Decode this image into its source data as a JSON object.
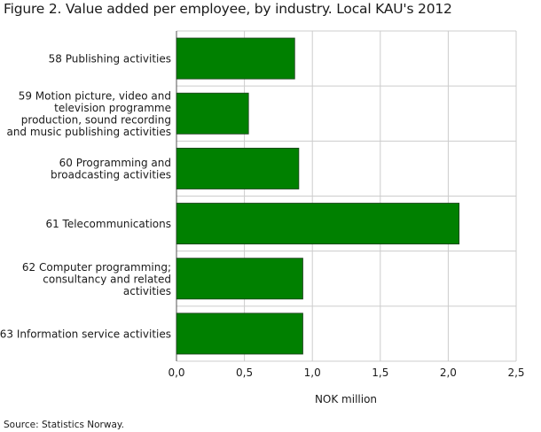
{
  "title": "Figure 2. Value added per employee, by industry. Local KAU's 2012",
  "source": "Source: Statistics Norway.",
  "colors": {
    "bar": "#008000",
    "bar_border": "#1e3d1e",
    "grid": "#cccccc"
  },
  "chart_data": {
    "type": "bar",
    "orientation": "horizontal",
    "title": "Figure 2. Value added per employee, by industry. Local KAU's 2012",
    "xlabel": "NOK million",
    "ylabel": "",
    "xlim": [
      0,
      2.5
    ],
    "xticks": [
      "0,0",
      "0,5",
      "1,0",
      "1,5",
      "2,0",
      "2,5"
    ],
    "grid": true,
    "categories": [
      [
        "58 Publishing activities"
      ],
      [
        "59 Motion picture, video and",
        "television programme",
        "production, sound recording",
        "and music publishing activities"
      ],
      [
        "60 Programming and",
        "broadcasting activities"
      ],
      [
        "61 Telecommunications"
      ],
      [
        "62 Computer programming;",
        "consultancy and related",
        "activities"
      ],
      [
        "63 Information service activities"
      ]
    ],
    "values": [
      0.87,
      0.53,
      0.9,
      2.08,
      0.93,
      0.93
    ]
  }
}
